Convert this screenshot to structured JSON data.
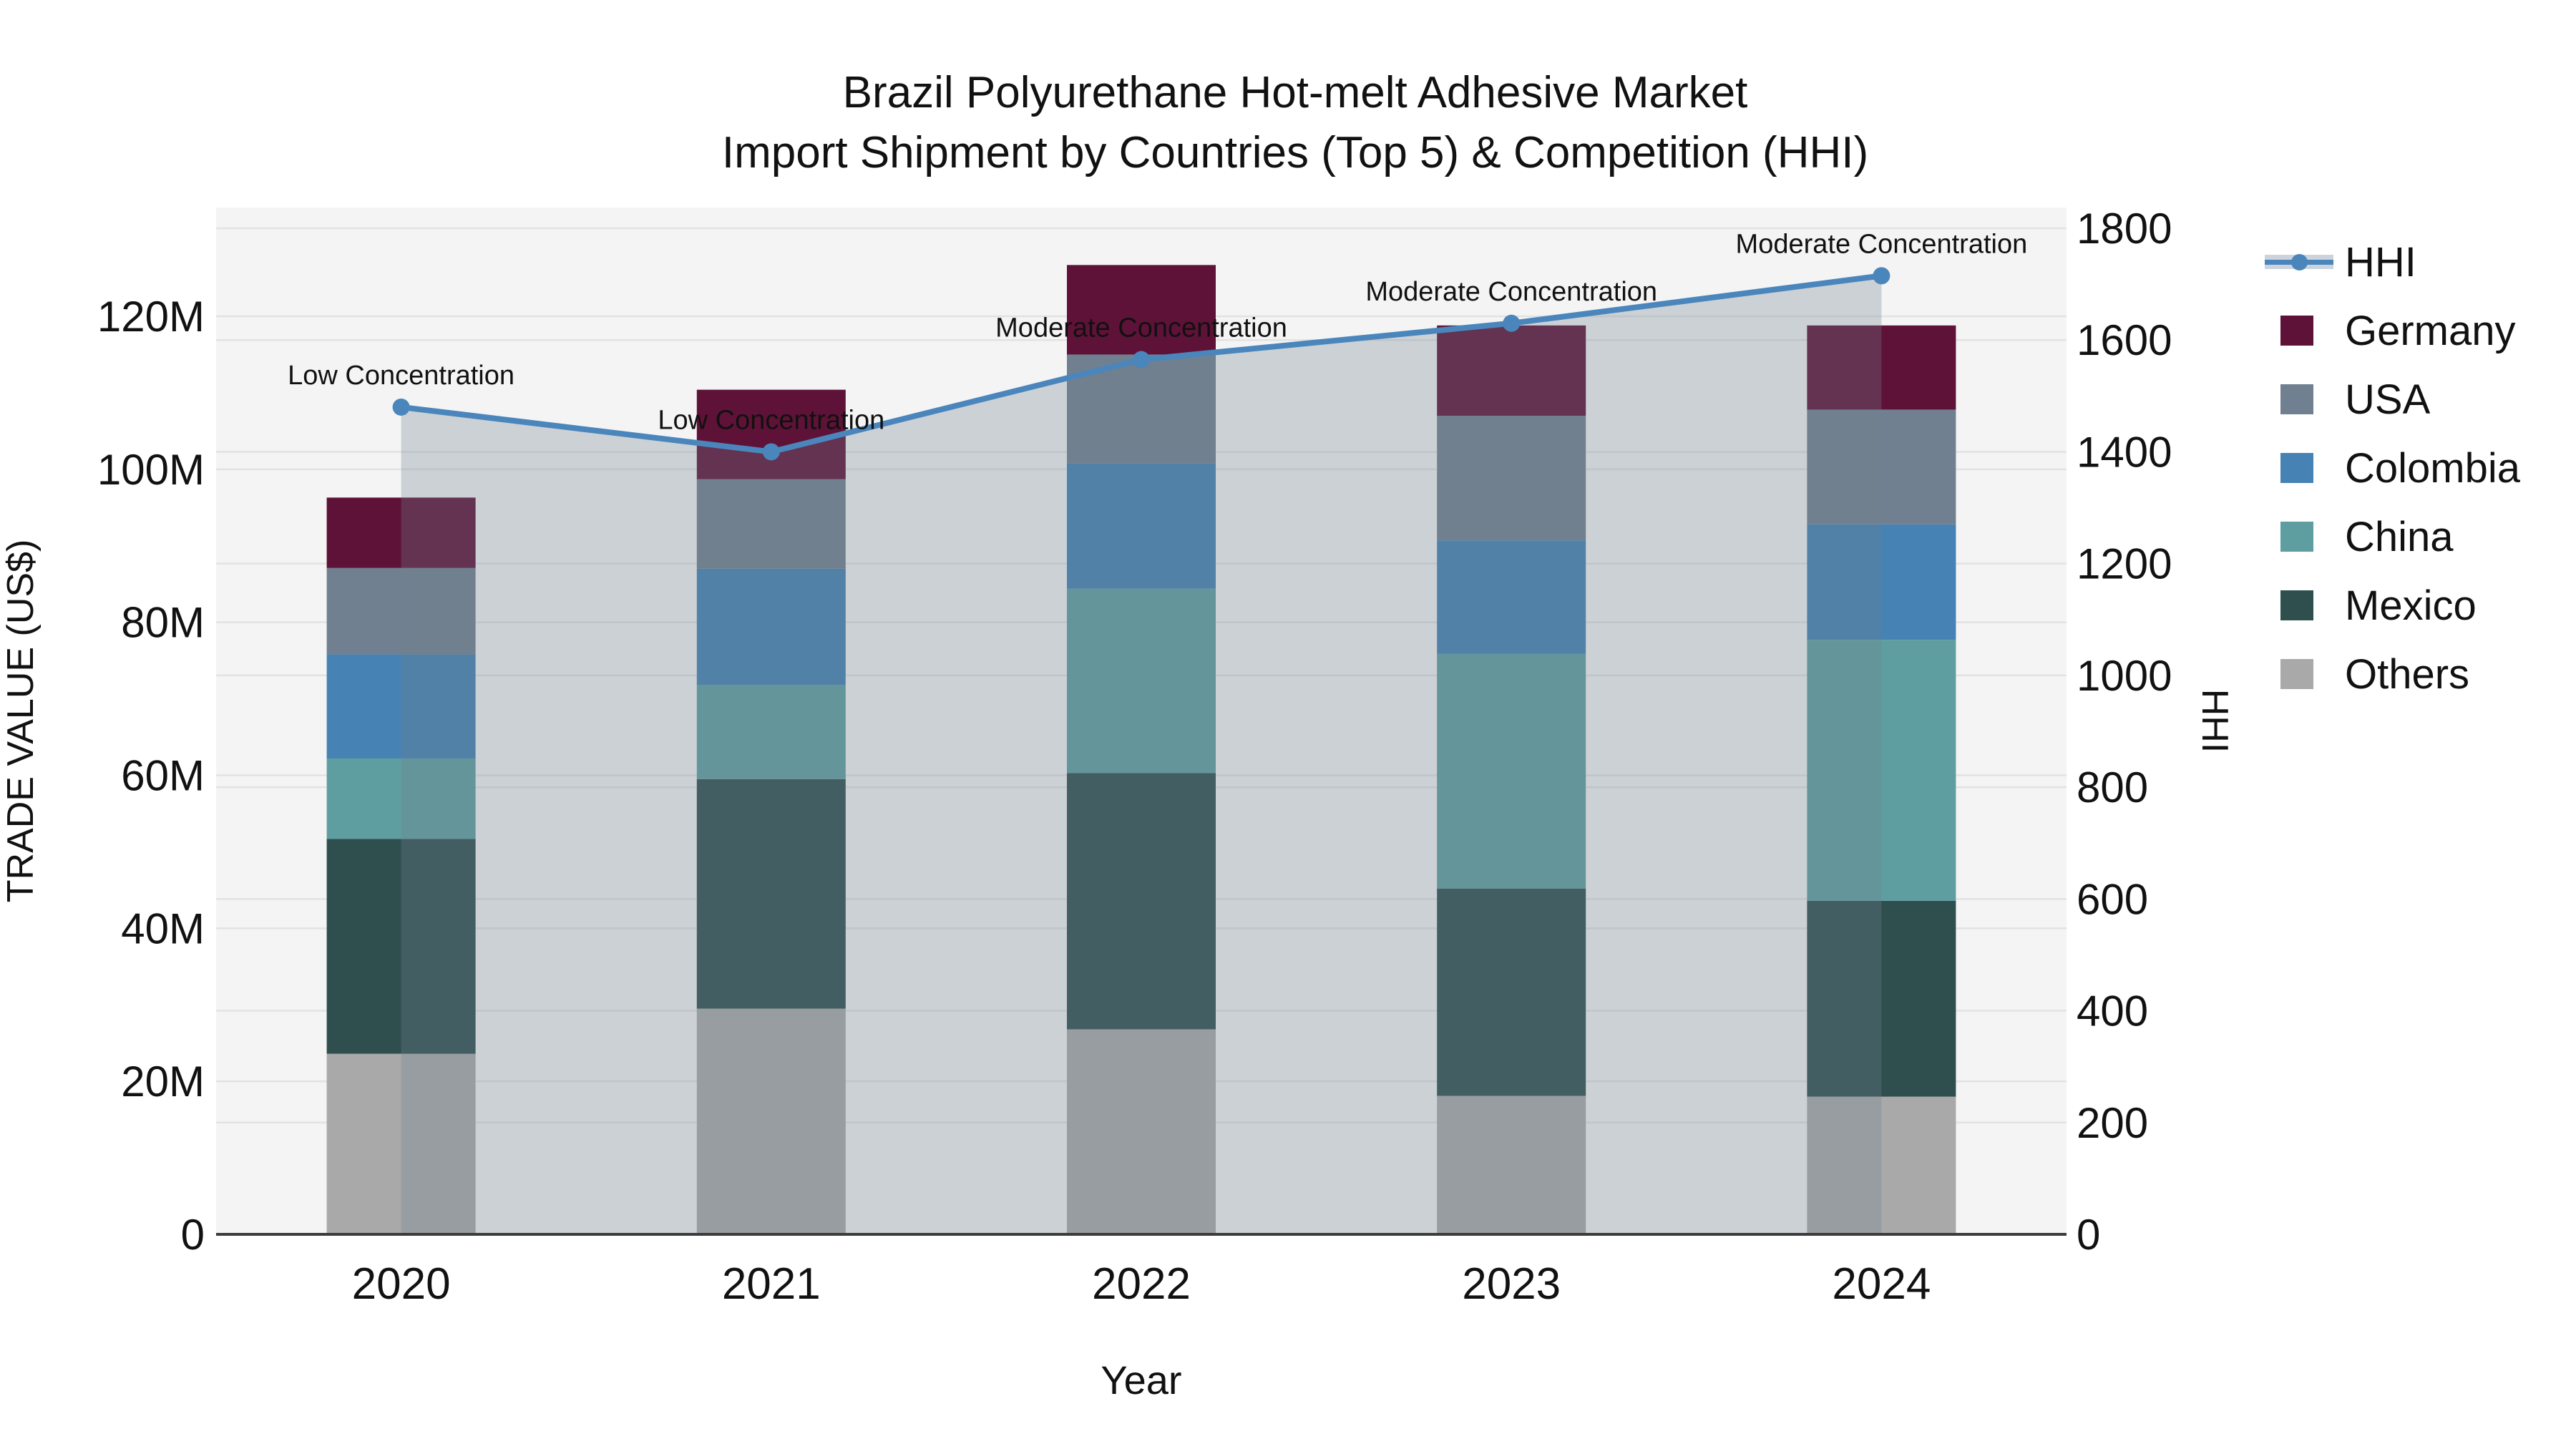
{
  "figure": {
    "title_line1": "Brazil Polyurethane Hot-melt Adhesive Market",
    "title_line2": "Import Shipment by Countries (Top 5) & Competition (HHI)"
  },
  "chart_data": {
    "type": "bar",
    "subtype": "stacked-bars-with-line-overlay",
    "title": "Brazil Polyurethane Hot-melt Adhesive Market Import Shipment by Countries (Top 5) & Competition (HHI)",
    "categories": [
      "2020",
      "2021",
      "2022",
      "2023",
      "2024"
    ],
    "x_label": "Year",
    "y_left": {
      "label": "TRADE VALUE (US$)",
      "unit": "million US$",
      "ticks": [
        "0",
        "20M",
        "40M",
        "60M",
        "80M",
        "100M",
        "120M"
      ],
      "tick_values": [
        0,
        20,
        40,
        60,
        80,
        100,
        120
      ],
      "range": [
        0,
        134.2
      ],
      "grid": true
    },
    "y_right": {
      "label": "HHI",
      "ticks": [
        "0",
        "200",
        "400",
        "600",
        "800",
        "1000",
        "1200",
        "1400",
        "1600",
        "1800"
      ],
      "tick_values": [
        0,
        200,
        400,
        600,
        800,
        1000,
        1200,
        1400,
        1600,
        1800
      ],
      "range": [
        0,
        1836
      ],
      "grid": true
    },
    "bar_series": [
      {
        "name": "Others",
        "color": "#A9A9A9",
        "values": [
          23.6,
          29.5,
          26.8,
          18.1,
          18.0
        ]
      },
      {
        "name": "Mexico",
        "color": "#2F4F4F",
        "values": [
          28.1,
          30.0,
          33.5,
          27.1,
          25.6
        ]
      },
      {
        "name": "China",
        "color": "#5F9EA0",
        "values": [
          10.5,
          12.3,
          24.1,
          30.7,
          34.1
        ]
      },
      {
        "name": "Colombia",
        "color": "#4682B4",
        "values": [
          13.6,
          15.2,
          16.4,
          14.8,
          15.1
        ]
      },
      {
        "name": "USA",
        "color": "#708090",
        "values": [
          11.3,
          11.7,
          14.2,
          16.3,
          15.0
        ]
      },
      {
        "name": "Germany",
        "color": "#5E1237",
        "values": [
          9.2,
          11.7,
          11.7,
          11.8,
          11.0
        ]
      }
    ],
    "bar_totals": [
      96.3,
      110.4,
      126.7,
      118.8,
      118.8
    ],
    "line_series": {
      "name": "HHI",
      "color": "#4A86BC",
      "area_fill": "rgba(112,128,144,0.30)",
      "values": [
        1480,
        1400,
        1565,
        1630,
        1715
      ]
    },
    "annotations": [
      {
        "category": "2020",
        "text": "Low Concentration"
      },
      {
        "category": "2021",
        "text": "Low Concentration"
      },
      {
        "category": "2022",
        "text": "Moderate Concentration"
      },
      {
        "category": "2023",
        "text": "Moderate Concentration"
      },
      {
        "category": "2024",
        "text": "Moderate Concentration"
      }
    ],
    "legend_position": "right",
    "colors": {
      "plot_bg": "#F4F4F4",
      "paper_bg": "#FFFFFF",
      "grid": "#E2E2E2",
      "axis_line": "#3C3C3C",
      "text": "#111111"
    }
  }
}
